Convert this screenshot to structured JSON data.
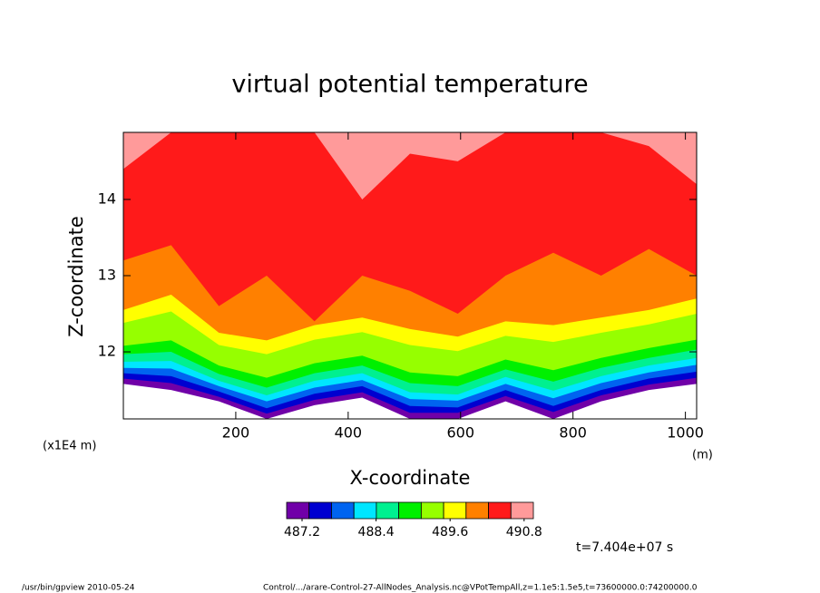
{
  "chart_data": {
    "type": "contour",
    "title": "virtual potential temperature",
    "xlabel": "X-coordinate",
    "ylabel": "Z-coordinate",
    "y_scale_label": "(x1E4 m)",
    "x_unit_label": "(m)",
    "time_label": "t=7.404e+07 s",
    "footer_left": "/usr/bin/gpview  2010-05-24",
    "footer_right": "Control/.../arare-Control-27-AllNodes_Analysis.nc@VPotTempAll,z=1.1e5:1.5e5,t=73600000.0:74200000.0",
    "x": [
      0,
      85,
      170,
      255,
      340,
      425,
      510,
      595,
      680,
      765,
      850,
      935,
      1020
    ],
    "xlim": [
      0,
      1020
    ],
    "xticks": [
      200,
      400,
      600,
      800,
      1000
    ],
    "ylim": [
      11.12,
      14.88
    ],
    "yticks": [
      12,
      13,
      14
    ],
    "above_color": "#ff9a9a",
    "series": [
      {
        "color": "#ff1a1a",
        "values": [
          14.4,
          14.88,
          14.88,
          14.88,
          14.88,
          14.0,
          14.6,
          14.5,
          14.88,
          14.88,
          14.88,
          14.7,
          14.2
        ]
      },
      {
        "color": "#ff8000",
        "values": [
          13.2,
          13.4,
          12.6,
          13.0,
          12.4,
          13.0,
          12.8,
          12.5,
          13.0,
          13.3,
          13.0,
          13.35,
          13.0
        ]
      },
      {
        "color": "#ffff00",
        "values": [
          12.55,
          12.75,
          12.25,
          12.15,
          12.35,
          12.45,
          12.3,
          12.2,
          12.4,
          12.35,
          12.45,
          12.55,
          12.7
        ]
      },
      {
        "color": "#96ff00",
        "values": [
          12.38,
          12.53,
          12.09,
          11.97,
          12.16,
          12.26,
          12.09,
          12.01,
          12.21,
          12.13,
          12.25,
          12.36,
          12.5
        ]
      },
      {
        "color": "#00f000",
        "values": [
          12.08,
          12.15,
          11.82,
          11.66,
          11.85,
          11.95,
          11.73,
          11.68,
          11.9,
          11.76,
          11.92,
          12.05,
          12.16
        ]
      },
      {
        "color": "#00f090",
        "values": [
          11.97,
          12.0,
          11.71,
          11.53,
          11.72,
          11.82,
          11.59,
          11.55,
          11.77,
          11.61,
          11.79,
          11.92,
          12.03
        ]
      },
      {
        "color": "#00e6ff",
        "values": [
          11.87,
          11.88,
          11.62,
          11.43,
          11.62,
          11.72,
          11.47,
          11.44,
          11.67,
          11.49,
          11.68,
          11.82,
          11.92
        ]
      },
      {
        "color": "#0064f0",
        "values": [
          11.79,
          11.78,
          11.55,
          11.35,
          11.53,
          11.63,
          11.38,
          11.36,
          11.58,
          11.39,
          11.59,
          11.73,
          11.83
        ]
      },
      {
        "color": "#0000d0",
        "values": [
          11.72,
          11.68,
          11.48,
          11.26,
          11.45,
          11.55,
          11.29,
          11.27,
          11.5,
          11.29,
          11.5,
          11.65,
          11.74
        ]
      },
      {
        "color": "#7000a8",
        "values": [
          11.65,
          11.59,
          11.41,
          11.19,
          11.37,
          11.47,
          11.2,
          11.2,
          11.42,
          11.21,
          11.43,
          11.57,
          11.66
        ]
      },
      {
        "color": "#ffffff",
        "values": [
          11.58,
          11.5,
          11.35,
          11.12,
          11.3,
          11.4,
          11.12,
          11.12,
          11.35,
          11.12,
          11.35,
          11.5,
          11.58
        ]
      }
    ],
    "colorbar": {
      "clim": [
        486.95,
        490.95
      ],
      "ticks": [
        487.2,
        488.4,
        489.6,
        490.8
      ]
    }
  }
}
